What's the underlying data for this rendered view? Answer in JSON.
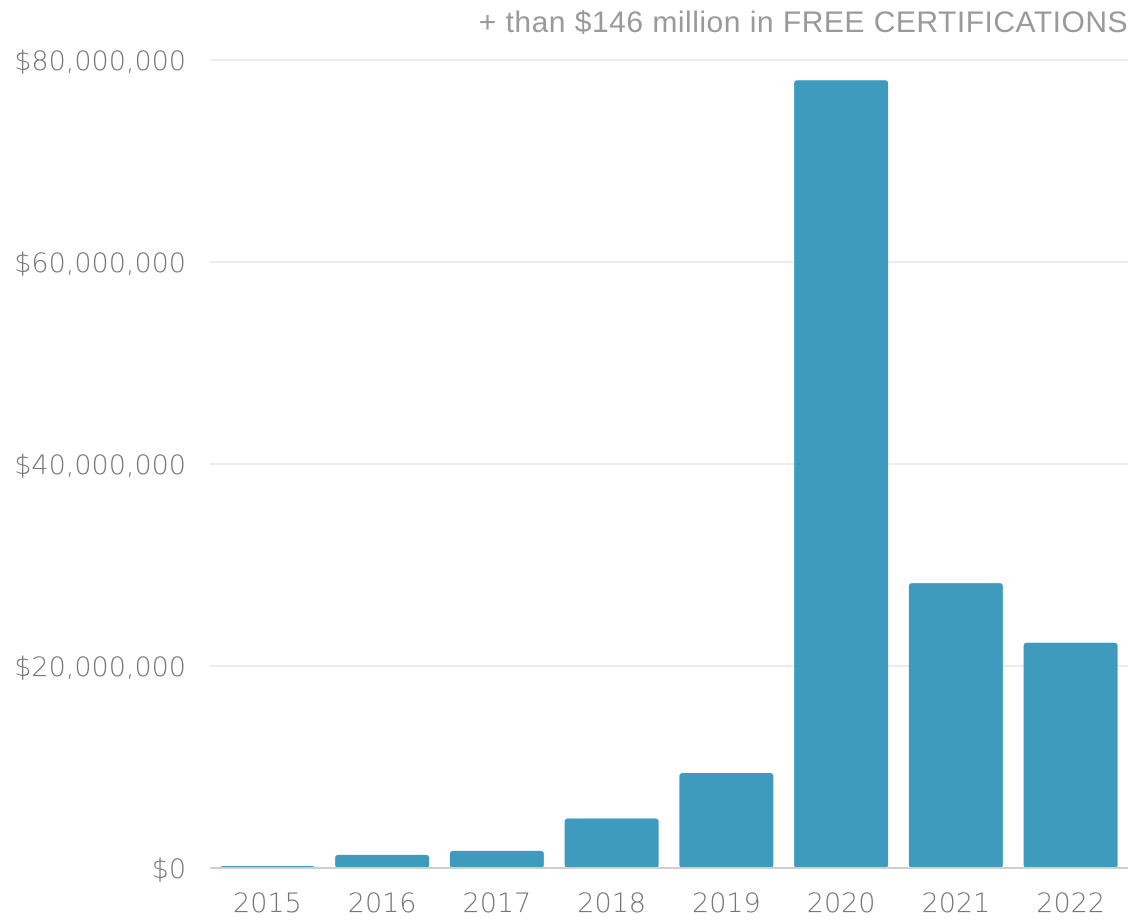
{
  "chart_data": {
    "type": "bar",
    "title": "+ than $146 million in FREE CERTIFICATIONS",
    "categories": [
      "2015",
      "2016",
      "2017",
      "2018",
      "2019",
      "2020",
      "2021",
      "2022"
    ],
    "values": [
      100000,
      1300000,
      1700000,
      4900000,
      9400000,
      78000000,
      28200000,
      22300000
    ],
    "ylim": [
      0,
      80000000
    ],
    "yticks": [
      "$0",
      "$20,000,000",
      "$40,000,000",
      "$60,000,000",
      "$80,000,000"
    ],
    "ytick_values": [
      0,
      20000000,
      40000000,
      60000000,
      80000000
    ],
    "grid": true,
    "bar_color": "#3e9bbd"
  }
}
